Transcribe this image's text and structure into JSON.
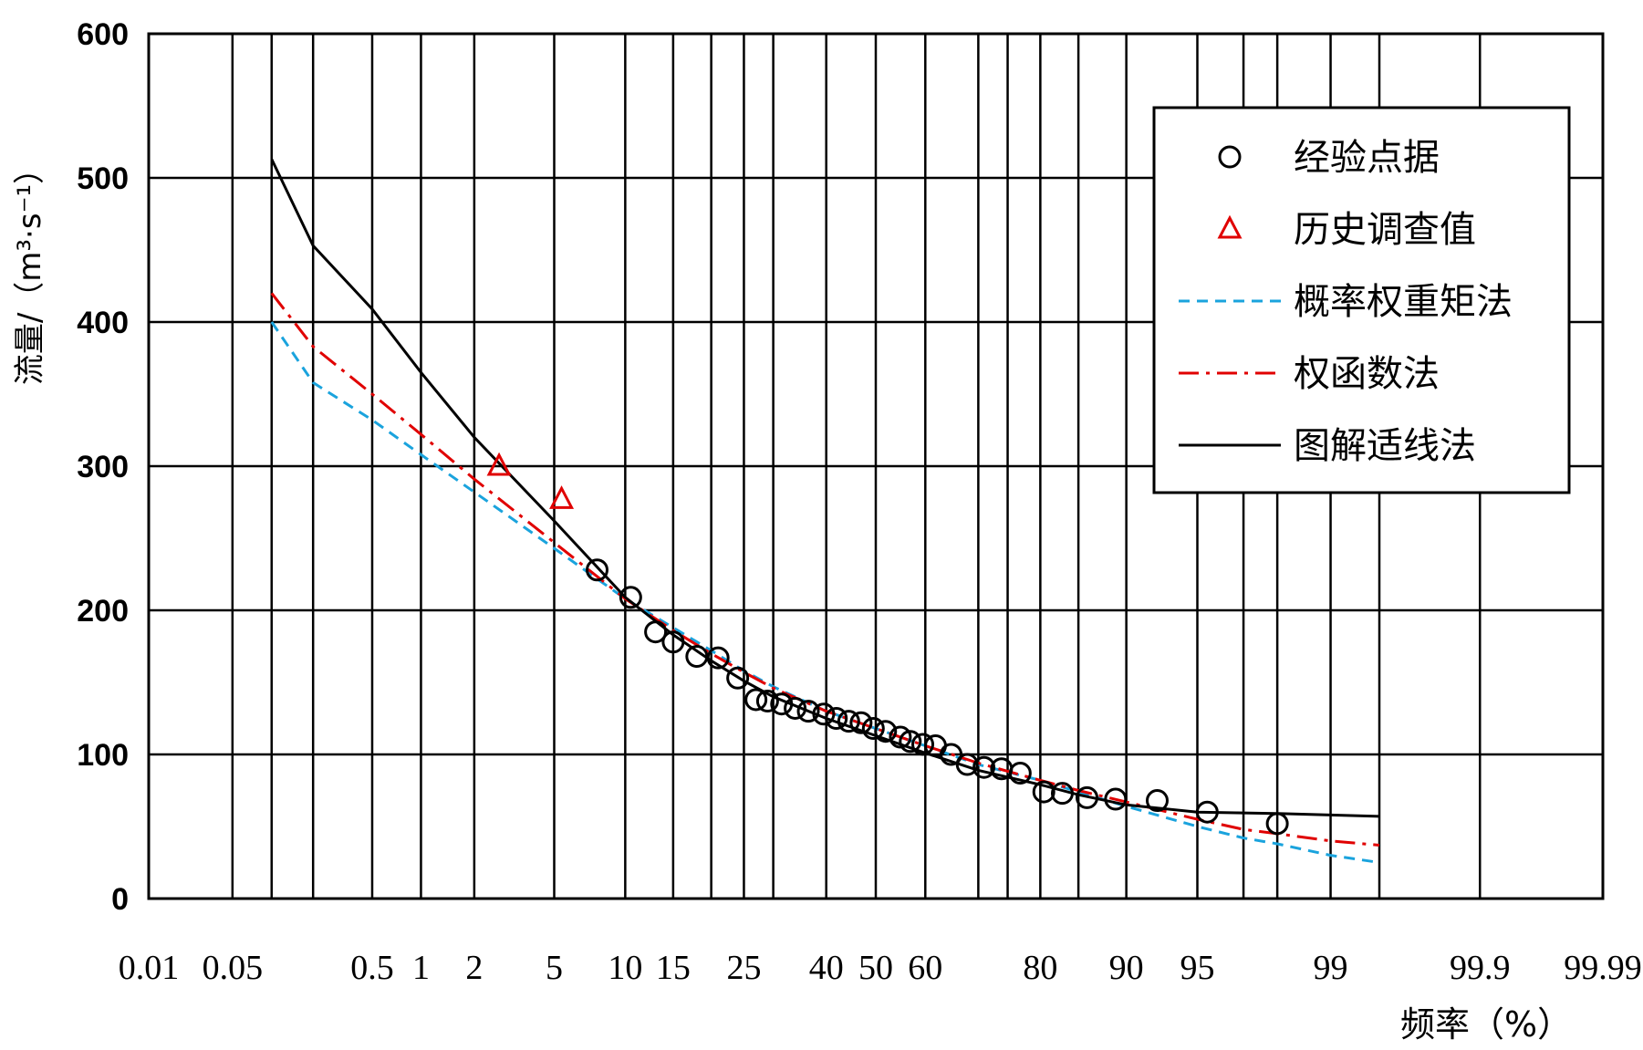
{
  "chart_data": {
    "type": "scatter",
    "xlabel": "频率（%）",
    "ylabel": "流量/（m³·s⁻¹）",
    "x_scale": "normal-probability",
    "ylim": [
      0,
      600
    ],
    "y_ticks": [
      0,
      100,
      200,
      300,
      400,
      500,
      600
    ],
    "x_tick_labels": [
      "0.01",
      "0.05",
      "0.5",
      "1",
      "2",
      "5",
      "10",
      "15",
      "25",
      "40",
      "50",
      "60",
      "80",
      "90",
      "95",
      "99",
      "99.9",
      "99.99"
    ],
    "x_tick_values": [
      0.01,
      0.05,
      0.5,
      1,
      2,
      5,
      10,
      15,
      25,
      40,
      50,
      60,
      80,
      90,
      95,
      99,
      99.9,
      99.99
    ],
    "x_grid_values": [
      0.01,
      0.05,
      0.1,
      0.2,
      0.5,
      1,
      2,
      5,
      10,
      15,
      20,
      25,
      30,
      40,
      50,
      60,
      70,
      75,
      80,
      85,
      90,
      95,
      97,
      98,
      99,
      99.5,
      99.9,
      99.99
    ],
    "grid": true,
    "legend_position": "top-right",
    "series": [
      {
        "name": "经验点据",
        "style": "circle",
        "color": "#000000",
        "points": [
          [
            7.7,
            228
          ],
          [
            10.5,
            209
          ],
          [
            13.0,
            185
          ],
          [
            15.0,
            178
          ],
          [
            18.0,
            168
          ],
          [
            21.0,
            167
          ],
          [
            24.0,
            153
          ],
          [
            27.0,
            138
          ],
          [
            29.0,
            137
          ],
          [
            31.5,
            135
          ],
          [
            34.0,
            132
          ],
          [
            36.5,
            130
          ],
          [
            39.5,
            128
          ],
          [
            42.0,
            125
          ],
          [
            44.5,
            123
          ],
          [
            47.0,
            122
          ],
          [
            49.5,
            118
          ],
          [
            52.0,
            116
          ],
          [
            55.0,
            112
          ],
          [
            57.0,
            109
          ],
          [
            59.5,
            107
          ],
          [
            62.0,
            106
          ],
          [
            65.0,
            100
          ],
          [
            68.0,
            93
          ],
          [
            71.0,
            91
          ],
          [
            74.0,
            90
          ],
          [
            77.0,
            87
          ],
          [
            80.5,
            74
          ],
          [
            83.0,
            73
          ],
          [
            86.0,
            70
          ],
          [
            89.0,
            69
          ],
          [
            92.5,
            68
          ],
          [
            95.5,
            60
          ],
          [
            98.0,
            52
          ]
        ]
      },
      {
        "name": "历史调查值",
        "style": "triangle",
        "color": "#e00000",
        "points": [
          [
            2.7,
            300
          ],
          [
            5.4,
            277
          ]
        ]
      },
      {
        "name": "概率权重矩法",
        "style": "dashed",
        "color": "#1aa3dd",
        "points": [
          [
            0.1,
            400
          ],
          [
            0.2,
            358
          ],
          [
            0.5,
            332
          ],
          [
            1,
            308
          ],
          [
            2,
            282
          ],
          [
            5,
            243
          ],
          [
            10,
            208
          ],
          [
            15,
            188
          ],
          [
            20,
            172
          ],
          [
            25,
            158
          ],
          [
            30,
            147
          ],
          [
            40,
            130
          ],
          [
            50,
            118
          ],
          [
            60,
            106
          ],
          [
            70,
            93
          ],
          [
            80,
            82
          ],
          [
            85,
            74
          ],
          [
            90,
            64
          ],
          [
            95,
            50
          ],
          [
            97,
            42
          ],
          [
            98,
            38
          ],
          [
            99,
            30
          ],
          [
            99.5,
            25
          ]
        ]
      },
      {
        "name": "权函数法",
        "style": "dash-dot",
        "color": "#e00000",
        "points": [
          [
            0.1,
            420
          ],
          [
            0.2,
            383
          ],
          [
            0.5,
            350
          ],
          [
            1,
            322
          ],
          [
            2,
            291
          ],
          [
            5,
            247
          ],
          [
            10,
            208
          ],
          [
            15,
            186
          ],
          [
            20,
            170
          ],
          [
            25,
            157
          ],
          [
            30,
            146
          ],
          [
            40,
            130
          ],
          [
            50,
            118
          ],
          [
            60,
            106
          ],
          [
            70,
            94
          ],
          [
            80,
            82
          ],
          [
            85,
            75
          ],
          [
            90,
            67
          ],
          [
            95,
            55
          ],
          [
            97,
            48
          ],
          [
            98,
            45
          ],
          [
            99,
            40
          ],
          [
            99.5,
            37
          ]
        ]
      },
      {
        "name": "图解适线法",
        "style": "solid",
        "color": "#000000",
        "points": [
          [
            0.1,
            513
          ],
          [
            0.2,
            453
          ],
          [
            0.5,
            409
          ],
          [
            1,
            365
          ],
          [
            2,
            320
          ],
          [
            5,
            262
          ],
          [
            10,
            209
          ],
          [
            15,
            183
          ],
          [
            20,
            165
          ],
          [
            25,
            151
          ],
          [
            30,
            140
          ],
          [
            40,
            125
          ],
          [
            50,
            113
          ],
          [
            60,
            101
          ],
          [
            70,
            89
          ],
          [
            80,
            79
          ],
          [
            85,
            72
          ],
          [
            90,
            65
          ],
          [
            95,
            60
          ],
          [
            98,
            59
          ],
          [
            99,
            58
          ],
          [
            99.5,
            57
          ]
        ]
      }
    ]
  }
}
